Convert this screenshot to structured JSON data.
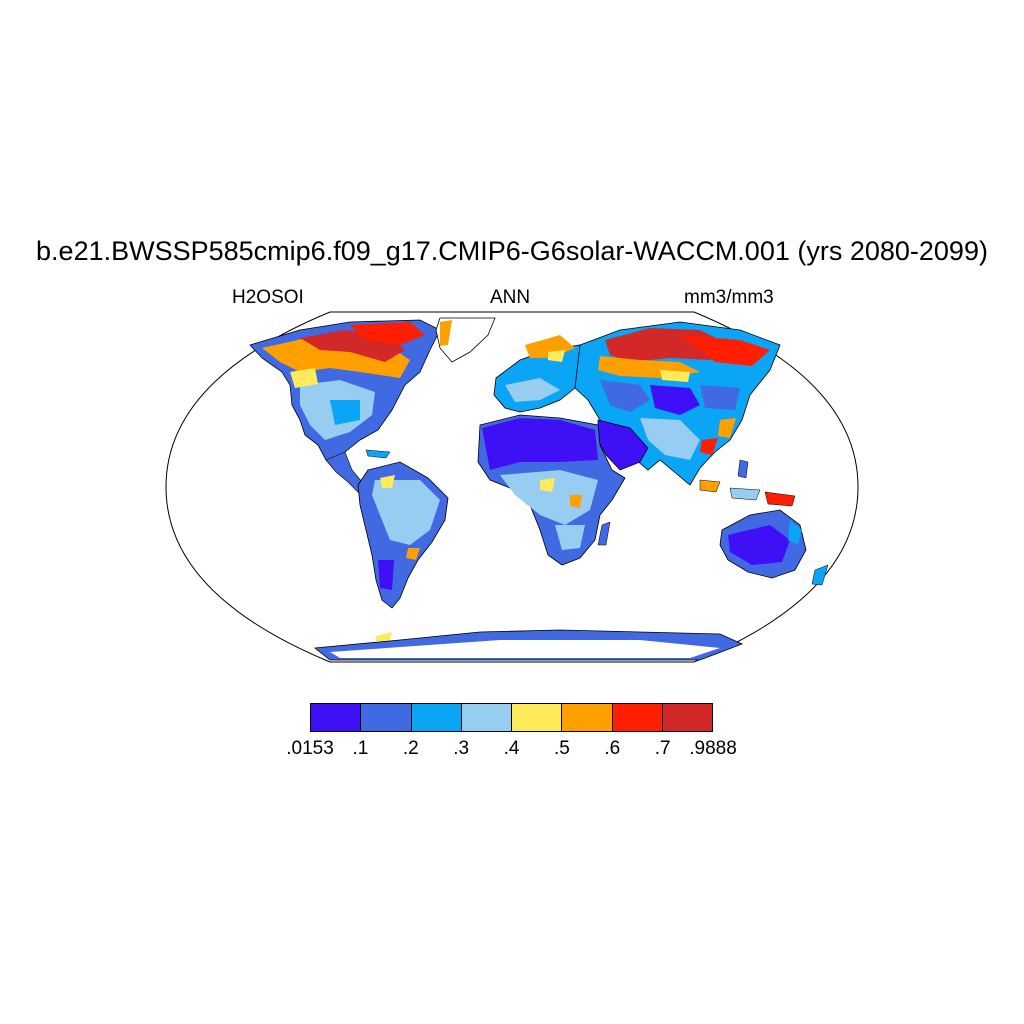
{
  "figure": {
    "title": "b.e21.BWSSP585cmip6.f09_g17.CMIP6-G6solar-WACCM.001 (yrs 2080-2099)",
    "left_label": "H2OSOI",
    "center_label": "ANN",
    "right_label": "mm3/mm3"
  },
  "colorbar": {
    "colors": [
      "#3f0ff5",
      "#4169e1",
      "#0aa5f5",
      "#96cdf0",
      "#ffeb5a",
      "#ffa000",
      "#ff1e00",
      "#d22828"
    ],
    "labels": [
      ".0153",
      ".1",
      ".2",
      ".3",
      ".4",
      ".5",
      ".6",
      ".7",
      ".9888"
    ]
  },
  "map": {
    "projection": "robinson",
    "background": "#ffffff",
    "coastline_color": "#000000"
  }
}
